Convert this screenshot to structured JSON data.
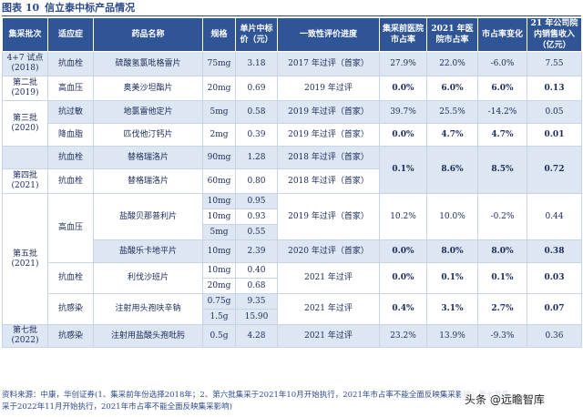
{
  "title": {
    "num": "图表 10",
    "text": "信立泰中标产品情况"
  },
  "headers": [
    "集采批次",
    "适应症",
    "药品名称",
    "规格",
    "单片中标价（元）",
    "一致性评价进度",
    "集采前医院市占率",
    "2021 年医院市占率",
    "市占率变化",
    "21 年公司院内销售收入（亿元）"
  ],
  "cells": {
    "b1": "4+7 试点(2018)",
    "b2": "第二批(2019)",
    "b3": "第三批(2020)",
    "b4": "第四批(2021)",
    "b5": "第五批(2021)",
    "b7": "第七批(2022)",
    "r1": [
      "抗血栓",
      "硫酸氢氯吡格雷片",
      "75mg",
      "3.18",
      "2017 年过评（首家）",
      "27.9%",
      "22.0%",
      "-6.0%",
      "7.55"
    ],
    "r2": [
      "高血压",
      "奥美沙坦酯片",
      "20mg",
      "0.69",
      "2019 年过评",
      "0.0%",
      "6.0%",
      "6.0%",
      "0.13"
    ],
    "r3": [
      "抗过敏",
      "地氯雷他定片",
      "5mg",
      "0.58",
      "2019 年过评（首家）",
      "39.7%",
      "25.5%",
      "-14.2%",
      "0.05"
    ],
    "r4": [
      "降血脂",
      "匹伐他汀钙片",
      "2mg",
      "0.39",
      "2019 年过评（首家）",
      "0.0%",
      "4.7%",
      "4.7%",
      "0.01"
    ],
    "r5": [
      "抗血栓",
      "替格瑞洛片",
      "90mg",
      "1.28",
      "2018 年过评（首家）"
    ],
    "r5m": [
      "0.1%",
      "8.6%",
      "8.5%",
      "0.72"
    ],
    "r6": [
      "抗血栓",
      "替格瑞洛片",
      "60mg",
      "0.80",
      "2018 年过评（首家）"
    ],
    "r7": [
      "高血压",
      "盐酸贝那普利片",
      "10mg",
      "0.95",
      "2019 年过评（首家）",
      "10.2%",
      "10.0%",
      "-0.2%",
      "0.44"
    ],
    "r8": [
      "10mg",
      "0.93"
    ],
    "r9": [
      "5mg",
      "0.55"
    ],
    "r10": [
      "盐酸乐卡地平片",
      "10mg",
      "2.39",
      "2020 年过评（首家）",
      "0.0%",
      "8.0%",
      "8.0%",
      "0.38"
    ],
    "r11": [
      "抗血栓",
      "利伐沙班片",
      "10mg",
      "0.40",
      "2021 年过评",
      "0.0%",
      "0.1%",
      "0.1%",
      "0.03"
    ],
    "r12": [
      "20mg",
      "0.68"
    ],
    "r13": [
      "抗感染",
      "注射用头孢呋辛钠",
      "0.75g",
      "9.35",
      "2021 年过评",
      "0.4%",
      "3.1%",
      "2.7%",
      "0.07"
    ],
    "r14": [
      "1.5g",
      "15.90"
    ],
    "r15": [
      "抗感染",
      "注射用盐酸头孢吡肟",
      "0.5g",
      "4.28",
      "2021 年过评",
      "23.2%",
      "13.9%",
      "-9.3%",
      "0.36"
    ]
  },
  "note": "资料来源：中康，华创证券(1、集采前年份选择2018年；2、第六批集采于2021年10月开始执行，2021年市占率不能全面反映集采影响；第七批集采于2022年11月开始执行，2021年市占率不能全面反映集采影响)",
  "brand": "头条 @远瞻智库"
}
